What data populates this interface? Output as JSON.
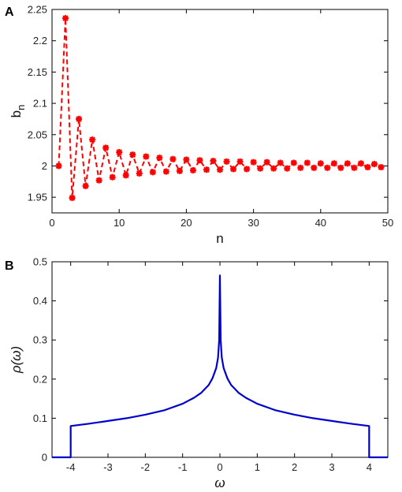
{
  "panels": {
    "a": "A",
    "b": "B"
  },
  "chart_data": [
    {
      "type": "line",
      "panel": "A",
      "xlabel": "n",
      "ylabel_base": "b",
      "ylabel_sub": "n",
      "xlim": [
        0,
        50
      ],
      "ylim": [
        1.925,
        2.25
      ],
      "xticks": [
        0,
        10,
        20,
        30,
        40,
        50
      ],
      "yticks": [
        1.95,
        2,
        2.05,
        2.1,
        2.15,
        2.2,
        2.25
      ],
      "ytick_labels": [
        "1.95",
        "2",
        "2.05",
        "2.1",
        "2.15",
        "2.2",
        "2.25"
      ],
      "grid": false,
      "line_style": "dashed with star markers",
      "color": "#ff0000",
      "series": [
        {
          "x": [
            1,
            2,
            3,
            4,
            5,
            6,
            7,
            8,
            9,
            10,
            11,
            12,
            13,
            14,
            15,
            16,
            17,
            18,
            19,
            20,
            21,
            22,
            23,
            24,
            25,
            26,
            27,
            28,
            29,
            30,
            31,
            32,
            33,
            34,
            35,
            36,
            37,
            38,
            39,
            40,
            41,
            42,
            43,
            44,
            45,
            46,
            47,
            48,
            49
          ],
          "y": [
            2.0,
            2.236,
            1.949,
            2.075,
            1.968,
            2.042,
            1.977,
            2.029,
            1.982,
            2.022,
            1.985,
            2.018,
            1.988,
            2.015,
            1.99,
            2.013,
            1.991,
            2.011,
            1.992,
            2.01,
            1.993,
            2.009,
            1.994,
            2.008,
            1.994,
            2.007,
            1.995,
            2.007,
            1.995,
            2.006,
            1.996,
            2.006,
            1.996,
            2.005,
            1.996,
            2.005,
            1.997,
            2.005,
            1.997,
            2.004,
            1.997,
            2.004,
            1.997,
            2.004,
            1.997,
            2.004,
            1.998,
            2.003,
            1.998
          ]
        }
      ]
    },
    {
      "type": "line",
      "panel": "B",
      "xlabel": "ω",
      "ylabel": "ρ(ω)",
      "xlim": [
        -4.5,
        4.5
      ],
      "ylim": [
        0,
        0.5
      ],
      "xticks": [
        -4,
        -3,
        -2,
        -1,
        0,
        1,
        2,
        3,
        4
      ],
      "xtick_labels": [
        "-4",
        "-3",
        "-2",
        "-1",
        "0",
        "1",
        "2",
        "3",
        "4"
      ],
      "yticks": [
        0,
        0.1,
        0.2,
        0.3,
        0.4,
        0.5
      ],
      "ytick_labels": [
        "0",
        "0.1",
        "0.2",
        "0.3",
        "0.4",
        "0.5"
      ],
      "grid": false,
      "color": "#0000cc",
      "series": [
        {
          "x": [
            -4.5,
            -4.0,
            -4.0,
            -3.5,
            -3.0,
            -2.5,
            -2.0,
            -1.5,
            -1.0,
            -0.7,
            -0.5,
            -0.3,
            -0.2,
            -0.1,
            -0.05,
            -0.02,
            0.0,
            0.02,
            0.05,
            0.1,
            0.2,
            0.3,
            0.5,
            0.7,
            1.0,
            1.5,
            2.0,
            2.5,
            3.0,
            3.5,
            4.0,
            4.0,
            4.5
          ],
          "y": [
            0,
            0,
            0.08,
            0.086,
            0.093,
            0.1,
            0.109,
            0.12,
            0.137,
            0.152,
            0.165,
            0.185,
            0.202,
            0.228,
            0.255,
            0.3,
            0.465,
            0.3,
            0.255,
            0.228,
            0.202,
            0.185,
            0.165,
            0.152,
            0.137,
            0.12,
            0.109,
            0.1,
            0.093,
            0.086,
            0.08,
            0,
            0
          ]
        }
      ]
    }
  ]
}
